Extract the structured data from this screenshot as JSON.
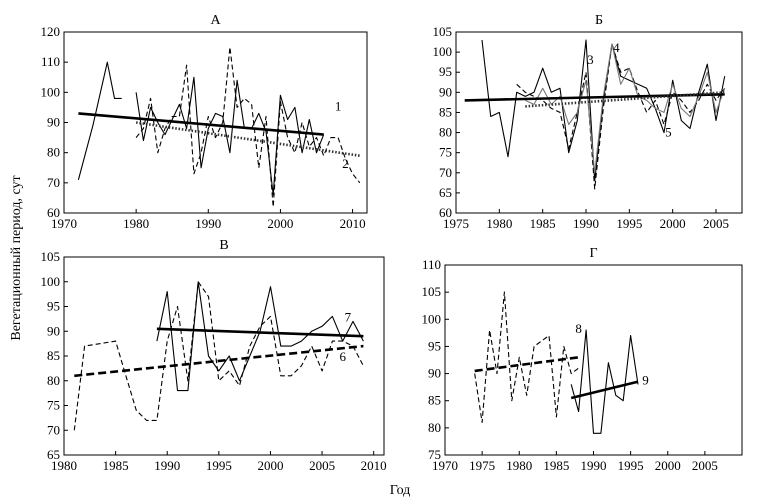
{
  "figure": {
    "ylabel": "Вегетационный период, сут",
    "xlabel": "Год"
  },
  "chart_data": [
    {
      "type": "line",
      "title": "А",
      "xlim": [
        1970,
        2012
      ],
      "ylim": [
        60,
        120
      ],
      "xticks": [
        1970,
        1980,
        1990,
        2000,
        2010
      ],
      "yticks": [
        60,
        70,
        80,
        90,
        100,
        110,
        120
      ],
      "series": [
        {
          "name": "series-a1",
          "style": "thin-solid",
          "x": [
            1972,
            1974,
            1976,
            1977,
            1978
          ],
          "y": [
            71,
            89,
            110,
            98,
            98
          ]
        },
        {
          "name": "series-a1b",
          "style": "thin-solid",
          "x": [
            1980,
            1981,
            1982,
            1983,
            1984,
            1986,
            1987,
            1988,
            1989,
            1990,
            1991,
            1992,
            1993,
            1994,
            1995,
            1996,
            1997,
            1998,
            1999,
            2000,
            2001,
            2002,
            2003,
            2004,
            2005,
            2006
          ],
          "y": [
            100,
            84,
            95,
            90,
            86,
            96,
            88,
            105,
            75,
            88,
            93,
            92,
            80,
            104,
            88,
            88,
            93,
            87,
            66,
            99,
            91,
            95,
            80,
            91,
            80,
            86
          ]
        },
        {
          "name": "series-a2",
          "style": "dashed",
          "x": [
            1980,
            1981,
            1982,
            1983,
            1984,
            1985,
            1986,
            1987,
            1988,
            1989,
            1990,
            1991,
            1992,
            1993,
            1994,
            1995,
            1996,
            1997,
            1998,
            1999,
            2000,
            2001,
            2002,
            2003,
            2004,
            2005,
            2006,
            2007,
            2008,
            2009,
            2010,
            2011
          ],
          "y": [
            85,
            88,
            98,
            80,
            88,
            92,
            92,
            109,
            73,
            80,
            92,
            85,
            90,
            115,
            95,
            98,
            96,
            75,
            92,
            62,
            97,
            85,
            80,
            90,
            82,
            85,
            79,
            85,
            85,
            78,
            73,
            70
          ]
        },
        {
          "name": "trend-1",
          "style": "thick-solid",
          "x": [
            1972,
            2006
          ],
          "y": [
            93,
            86
          ]
        },
        {
          "name": "trend-2",
          "style": "thick-dotted",
          "x": [
            1980,
            2011
          ],
          "y": [
            90,
            79
          ]
        }
      ],
      "annotations": [
        {
          "text": "1",
          "x": 2008,
          "y": 94
        },
        {
          "text": "2",
          "x": 2009,
          "y": 75
        }
      ]
    },
    {
      "type": "line",
      "title": "Б",
      "xlim": [
        1975,
        2008
      ],
      "ylim": [
        60,
        105
      ],
      "xticks": [
        1975,
        1980,
        1985,
        1990,
        1995,
        2000,
        2005
      ],
      "yticks": [
        60,
        65,
        70,
        75,
        80,
        85,
        90,
        95,
        100,
        105
      ],
      "series": [
        {
          "name": "series-b-solid",
          "style": "thin-solid",
          "x": [
            1978,
            1979,
            1980,
            1981,
            1982,
            1983,
            1984,
            1985,
            1986,
            1987,
            1988,
            1989,
            1990,
            1991,
            1992,
            1993,
            1994,
            1995,
            1996,
            1997,
            1998,
            1999,
            2000,
            2001,
            2002,
            2003,
            2004,
            2005,
            2006
          ],
          "y": [
            103,
            84,
            85,
            74,
            90,
            89,
            90,
            96,
            90,
            91,
            75,
            83,
            103,
            68,
            88,
            102,
            94,
            93,
            92,
            91,
            86,
            80,
            93,
            83,
            81,
            90,
            97,
            83,
            94
          ]
        },
        {
          "name": "series-b-dashed",
          "style": "dashed",
          "x": [
            1982,
            1983,
            1984,
            1985,
            1986,
            1987,
            1988,
            1989,
            1990,
            1991,
            1992,
            1993,
            1994,
            1995,
            1996,
            1997,
            1998,
            1999,
            2000,
            2001,
            2002,
            2003,
            2004,
            2005,
            2006
          ],
          "y": [
            92,
            90,
            89,
            88,
            86,
            85,
            76,
            85,
            95,
            66,
            86,
            102,
            95,
            96,
            90,
            85,
            88,
            82,
            90,
            88,
            85,
            88,
            92,
            88,
            91
          ]
        },
        {
          "name": "series-b-gray",
          "style": "thin-gray",
          "x": [
            1983,
            1984,
            1985,
            1986,
            1987,
            1988,
            1989,
            1990,
            1991,
            1992,
            1993,
            1994,
            1995,
            1996,
            1997,
            1998,
            1999,
            2000,
            2001,
            2002,
            2003,
            2004,
            2005,
            2006
          ],
          "y": [
            88,
            87,
            91,
            87,
            89,
            82,
            85,
            93,
            70,
            89,
            102,
            92,
            96,
            89,
            88,
            86,
            85,
            92,
            86,
            84,
            89,
            95,
            85,
            91
          ]
        },
        {
          "name": "trend-3",
          "style": "thick-solid",
          "x": [
            1976,
            2006
          ],
          "y": [
            88,
            89.5
          ]
        },
        {
          "name": "trend-4",
          "style": "thick-dotted",
          "x": [
            1983,
            2006
          ],
          "y": [
            86.5,
            90
          ]
        }
      ],
      "annotations": [
        {
          "text": "3",
          "x": 1990.5,
          "y": 97
        },
        {
          "text": "4",
          "x": 1993.5,
          "y": 100
        },
        {
          "text": "5",
          "x": 1999.5,
          "y": 79
        }
      ]
    },
    {
      "type": "line",
      "title": "В",
      "xlim": [
        1980,
        2011
      ],
      "ylim": [
        65,
        105
      ],
      "xticks": [
        1980,
        1985,
        1990,
        1995,
        2000,
        2005,
        2010
      ],
      "yticks": [
        65,
        70,
        75,
        80,
        85,
        90,
        95,
        100,
        105
      ],
      "series": [
        {
          "name": "series-v-dashed",
          "style": "dashed",
          "x": [
            1981,
            1982,
            1985,
            1986,
            1987,
            1988,
            1989,
            1990,
            1991,
            1992,
            1993,
            1994,
            1995,
            1996,
            1997,
            1998,
            1999,
            2000,
            2001,
            2002,
            2003,
            2004,
            2005,
            2006,
            2007,
            2008,
            2009
          ],
          "y": [
            70,
            87,
            88,
            81,
            74,
            72,
            72,
            88,
            95,
            80,
            100,
            97,
            80,
            82,
            79,
            87,
            91,
            93,
            81,
            81,
            83,
            87,
            82,
            88,
            88,
            87,
            83
          ]
        },
        {
          "name": "series-v-thin",
          "style": "thin-solid",
          "x": [
            1989,
            1990,
            1991,
            1992,
            1993,
            1994,
            1995,
            1996,
            1997,
            1998,
            1999,
            2000,
            2001,
            2002,
            2003,
            2004,
            2005,
            2006,
            2007,
            2008,
            2009
          ],
          "y": [
            88,
            98,
            78,
            78,
            100,
            85,
            82,
            85,
            80,
            85,
            90,
            99,
            87,
            87,
            88,
            90,
            91,
            93,
            88,
            92,
            88
          ]
        },
        {
          "name": "trend-7",
          "style": "thick-solid",
          "x": [
            1989,
            2009
          ],
          "y": [
            90.5,
            89
          ]
        },
        {
          "name": "trend-6",
          "style": "thick-dashed",
          "x": [
            1981,
            2009
          ],
          "y": [
            81,
            87
          ]
        }
      ],
      "annotations": [
        {
          "text": "7",
          "x": 2007.5,
          "y": 92
        },
        {
          "text": "6",
          "x": 2007,
          "y": 84
        }
      ]
    },
    {
      "type": "line",
      "title": "Г",
      "xlim": [
        1970,
        2010
      ],
      "ylim": [
        75,
        110
      ],
      "xticks": [
        1970,
        1975,
        1980,
        1985,
        1990,
        1995,
        2000,
        2005
      ],
      "yticks": [
        75,
        80,
        85,
        90,
        95,
        100,
        105,
        110
      ],
      "series": [
        {
          "name": "series-g-dashed",
          "style": "dashed",
          "x": [
            1974,
            1975,
            1976,
            1977,
            1978,
            1979,
            1980,
            1981,
            1982,
            1983,
            1984,
            1985,
            1986,
            1987,
            1988
          ],
          "y": [
            90,
            81,
            98,
            90,
            105,
            85,
            93,
            86,
            95,
            96,
            97,
            82,
            95,
            90,
            91
          ]
        },
        {
          "name": "series-g-solid",
          "style": "thin-solid",
          "x": [
            1987,
            1988,
            1989,
            1990,
            1991,
            1992,
            1993,
            1994,
            1995,
            1996
          ],
          "y": [
            88,
            83,
            98,
            79,
            79,
            92,
            86,
            85,
            97,
            88
          ]
        },
        {
          "name": "trend-8",
          "style": "thick-dashed",
          "x": [
            1974,
            1988
          ],
          "y": [
            90.5,
            93
          ]
        },
        {
          "name": "trend-9",
          "style": "thick-solid",
          "x": [
            1987,
            1996
          ],
          "y": [
            85.5,
            88.5
          ]
        }
      ],
      "annotations": [
        {
          "text": "8",
          "x": 1988,
          "y": 97.5
        },
        {
          "text": "9",
          "x": 1997,
          "y": 88
        }
      ]
    }
  ]
}
